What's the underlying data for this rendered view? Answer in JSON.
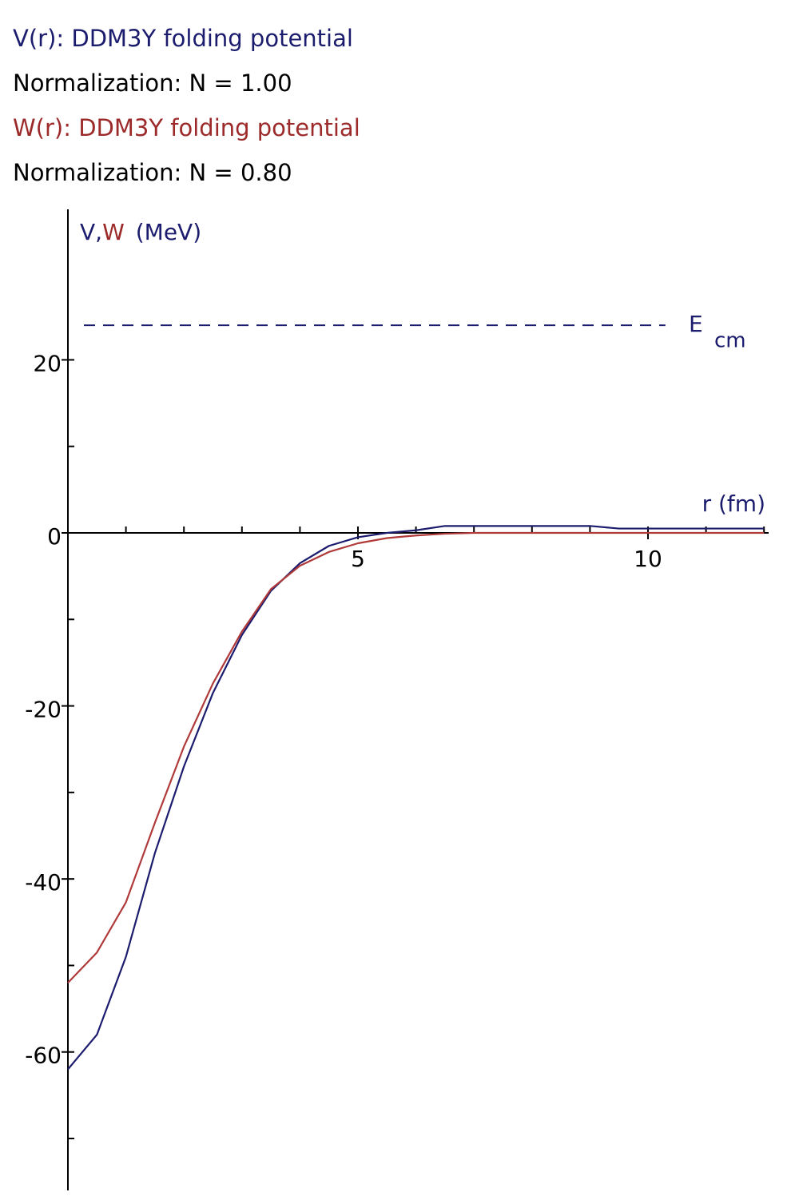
{
  "chart_data": {
    "type": "line",
    "headers": [
      {
        "text": "V(r): DDM3Y folding potential",
        "color": "#1c1c6e"
      },
      {
        "text": "Normalization: N = 1.00",
        "color": "#000000"
      },
      {
        "text": "W(r): DDM3Y folding potential",
        "color": "#9c2a2a"
      },
      {
        "text": "Normalization: N = 0.80",
        "color": "#000000"
      }
    ],
    "ylabel": [
      {
        "text": "V",
        "color": "#1c1c6e"
      },
      {
        "text": ",",
        "color": "#1c1c6e"
      },
      {
        "text": "W",
        "color": "#9c2a2a"
      },
      {
        "text": "(MeV)",
        "color": "#1c1c6e"
      }
    ],
    "xlabel": "r  (fm)",
    "x": [
      0,
      0.5,
      1,
      1.5,
      2,
      2.5,
      3,
      3.5,
      4,
      4.5,
      5,
      5.5,
      6,
      6.5,
      7,
      8,
      9,
      9.5,
      10,
      11,
      12
    ],
    "series": [
      {
        "name": "V",
        "color": "#1c1c6e",
        "values": [
          -62,
          -58,
          -49,
          -37,
          -27,
          -18.5,
          -11.8,
          -6.7,
          -3.5,
          -1.5,
          -0.5,
          0,
          0.3,
          0.8,
          0.8,
          0.8,
          0.8,
          0.5,
          0.5,
          0.5,
          0.5
        ]
      },
      {
        "name": "W",
        "color": "#b03a3a",
        "values": [
          -52,
          -48.5,
          -42.7,
          -33.5,
          -24.7,
          -17.4,
          -11.4,
          -6.5,
          -3.8,
          -2.2,
          -1.2,
          -0.6,
          -0.3,
          -0.1,
          0,
          0,
          0,
          0,
          0,
          0,
          0
        ]
      }
    ],
    "annotation": {
      "text": "E",
      "sub": "cm",
      "y": 24,
      "x_end": 10.3,
      "color": "#1c1c6e"
    },
    "xlim": [
      0,
      12.08
    ],
    "ylim": [
      -76,
      37.4
    ],
    "xticks": [
      5,
      10
    ],
    "xminor": [
      1,
      2,
      3,
      4,
      6,
      7,
      8,
      9,
      11,
      12
    ],
    "yticks": [
      -60,
      -40,
      -20,
      0,
      20
    ],
    "yminor": [
      -70,
      -50,
      -30,
      -10,
      10
    ]
  }
}
